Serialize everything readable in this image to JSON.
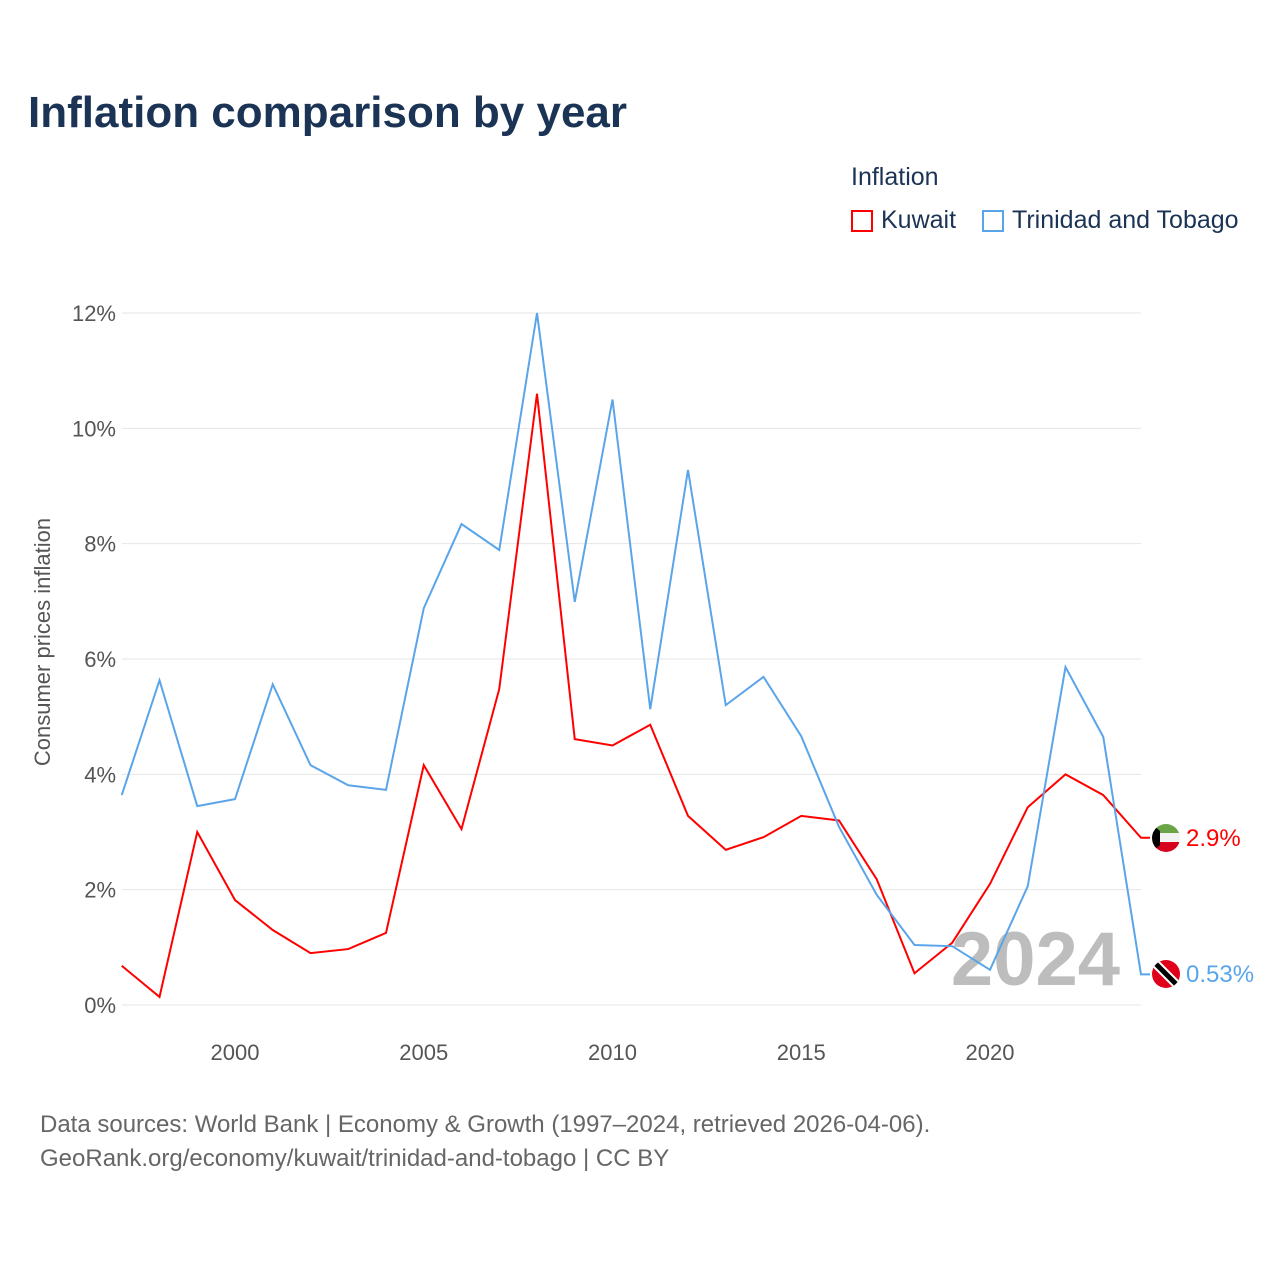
{
  "chart_data": {
    "type": "line",
    "title": "Inflation comparison by year",
    "legend_title": "Inflation",
    "legend_placement": "top-right",
    "ylabel": "Consumer prices inflation",
    "xlabel": "",
    "xlim": [
      1997,
      2024
    ],
    "ylim": [
      0,
      12
    ],
    "x_ticks": [
      2000,
      2005,
      2010,
      2015,
      2020
    ],
    "y_ticks": [
      0,
      2,
      4,
      6,
      8,
      10,
      12
    ],
    "y_tick_labels": [
      "0%",
      "2%",
      "4%",
      "6%",
      "8%",
      "10%",
      "12%"
    ],
    "grid": true,
    "year_watermark": "2024",
    "x": [
      1997,
      1998,
      1999,
      2000,
      2001,
      2002,
      2003,
      2004,
      2005,
      2006,
      2007,
      2008,
      2009,
      2010,
      2011,
      2012,
      2013,
      2014,
      2015,
      2016,
      2017,
      2018,
      2019,
      2020,
      2021,
      2022,
      2023,
      2024
    ],
    "series": [
      {
        "name": "Kuwait",
        "color": "#ff0000",
        "end_label": "2.9%",
        "values": [
          0.68,
          0.14,
          3.0,
          1.82,
          1.3,
          0.9,
          0.97,
          1.25,
          4.16,
          3.05,
          5.48,
          10.6,
          4.61,
          4.5,
          4.86,
          3.28,
          2.69,
          2.91,
          3.28,
          3.2,
          2.18,
          0.55,
          1.08,
          2.1,
          3.43,
          4.0,
          3.64,
          2.9
        ]
      },
      {
        "name": "Trinidad and Tobago",
        "color": "#5aa5ea",
        "end_label": "0.53%",
        "values": [
          3.64,
          5.63,
          3.45,
          3.57,
          5.56,
          4.16,
          3.81,
          3.73,
          6.88,
          8.34,
          7.89,
          12.0,
          6.99,
          10.5,
          5.13,
          9.28,
          5.2,
          5.69,
          4.66,
          3.09,
          1.91,
          1.04,
          1.02,
          0.61,
          2.06,
          5.86,
          4.65,
          0.53
        ]
      }
    ]
  },
  "footer": {
    "line1": "Data sources: World Bank | Economy & Growth (1997–2024, retrieved 2026-04-06).",
    "line2": "GeoRank.org/economy/kuwait/trinidad-and-tobago | CC BY"
  }
}
